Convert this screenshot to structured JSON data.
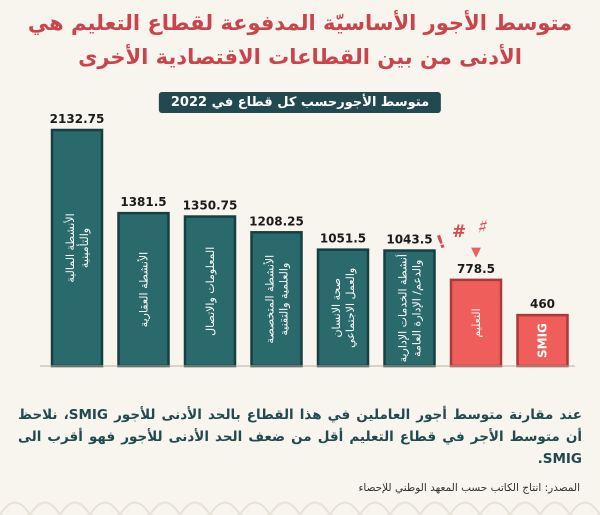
{
  "title": "متوسط الأجور الأساسيّة المدفوعة لقطاع التعليم هي الأدنى من بين القطاعات الاقتصادية الأخرى",
  "subtitle": "متوسط الأجورحسب كل قطاع في 2022",
  "note": "عند مقارنة متوسط أجور العاملين في هذا القطاع بالحد الأدنى للأجور SMIG، نلاحظ أن متوسط الأجر في قطاع التعليم  أقل من ضعف الحد الأدنى للأجور فهو أقرب الى SMIG.",
  "source": "المصدر: انتاج الكاتب حسب المعهد الوطني للإحصاء",
  "colors": {
    "teal": "#2a6a6c",
    "teal_dark": "#173f42",
    "red": "#ef5e5a",
    "red_dark": "#a83a37",
    "title": "#c9444b"
  },
  "decorations": {
    "exclaim": "!",
    "hash": "#",
    "squiggle": "♯",
    "arrow": "▼"
  },
  "chart_data": {
    "type": "bar",
    "title": "متوسط الأجورحسب كل قطاع في 2022",
    "categories": [
      "الأنشطة المالية والتأمينية",
      "الأنشطة العقارية",
      "المعلومات والاتصال",
      "الأنشطة المتخصصة والعلمية والتقنية",
      "صحة الانسان والعمل الاجتماعي",
      "أنشطة الخدمات الإدارية والدعم/ الإدارة العامة",
      "التعليم",
      "SMIG"
    ],
    "values": [
      2132.75,
      1381.5,
      1350.75,
      1208.25,
      1051.5,
      1043.5,
      778.5,
      460
    ],
    "value_labels": [
      "2132.75",
      "1381.5",
      "1350.75",
      "1208.25",
      "1051.5",
      "1043.5",
      "778.5",
      "460"
    ],
    "highlight": [
      "التعليم",
      "SMIG"
    ],
    "ylim": [
      0,
      2132.75
    ],
    "grid": false,
    "legend": "none"
  }
}
